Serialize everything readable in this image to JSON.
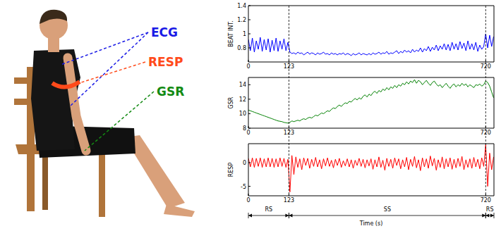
{
  "figure": {
    "labels": [
      {
        "text": "ECG",
        "color": "#1a1ae6"
      },
      {
        "text": "RESP",
        "color": "#ff4a1a"
      },
      {
        "text": "GSR",
        "color": "#138a13"
      }
    ],
    "vlines": [
      123,
      720
    ],
    "phases": [
      {
        "label": "RS",
        "start": 0,
        "end": 123
      },
      {
        "label": "SS",
        "start": 123,
        "end": 720
      },
      {
        "label": "RS",
        "start": 720,
        "end": 745
      }
    ]
  },
  "chart_data": [
    {
      "type": "line",
      "ylabel": "BEAT INT.",
      "grid": false,
      "xlim": [
        0,
        745
      ],
      "xticks": [
        0,
        123,
        720
      ],
      "ylim": [
        0.6,
        1.4
      ],
      "yticks": [
        0.8,
        1,
        1.2,
        1.4
      ],
      "x": [
        0,
        6,
        12,
        18,
        24,
        30,
        36,
        42,
        48,
        54,
        60,
        66,
        72,
        78,
        84,
        90,
        96,
        102,
        108,
        114,
        120,
        126,
        132,
        138,
        144,
        150,
        156,
        162,
        168,
        174,
        180,
        186,
        192,
        198,
        204,
        210,
        216,
        222,
        228,
        234,
        240,
        246,
        252,
        258,
        264,
        270,
        276,
        282,
        288,
        294,
        300,
        306,
        312,
        318,
        324,
        330,
        336,
        342,
        348,
        354,
        360,
        366,
        372,
        378,
        384,
        390,
        396,
        402,
        408,
        414,
        420,
        426,
        432,
        438,
        444,
        450,
        456,
        462,
        468,
        474,
        480,
        486,
        492,
        498,
        504,
        510,
        516,
        522,
        528,
        534,
        540,
        546,
        552,
        558,
        564,
        570,
        576,
        582,
        588,
        594,
        600,
        606,
        612,
        618,
        624,
        630,
        636,
        642,
        648,
        654,
        660,
        666,
        672,
        678,
        684,
        690,
        696,
        702,
        708,
        714,
        720,
        726,
        732,
        738,
        744
      ],
      "series": [
        {
          "color": "#0000ff",
          "values": [
            0.92,
            0.76,
            0.94,
            0.74,
            0.9,
            0.78,
            0.95,
            0.75,
            0.92,
            0.77,
            0.93,
            0.74,
            0.91,
            0.76,
            0.94,
            0.75,
            0.9,
            0.78,
            0.93,
            0.76,
            0.88,
            0.74,
            0.72,
            0.73,
            0.71,
            0.74,
            0.72,
            0.73,
            0.7,
            0.72,
            0.74,
            0.71,
            0.73,
            0.72,
            0.7,
            0.73,
            0.71,
            0.72,
            0.74,
            0.71,
            0.72,
            0.7,
            0.73,
            0.71,
            0.72,
            0.7,
            0.72,
            0.71,
            0.73,
            0.7,
            0.72,
            0.71,
            0.69,
            0.72,
            0.7,
            0.71,
            0.73,
            0.7,
            0.72,
            0.71,
            0.7,
            0.72,
            0.7,
            0.73,
            0.71,
            0.72,
            0.74,
            0.71,
            0.73,
            0.72,
            0.75,
            0.71,
            0.73,
            0.72,
            0.74,
            0.76,
            0.72,
            0.75,
            0.73,
            0.77,
            0.74,
            0.76,
            0.73,
            0.78,
            0.74,
            0.77,
            0.75,
            0.8,
            0.74,
            0.79,
            0.76,
            0.82,
            0.75,
            0.81,
            0.77,
            0.84,
            0.76,
            0.83,
            0.78,
            0.86,
            0.77,
            0.85,
            0.76,
            0.88,
            0.78,
            0.86,
            0.77,
            0.89,
            0.79,
            0.87,
            0.76,
            0.9,
            0.78,
            0.86,
            0.77,
            0.88,
            0.75,
            0.84,
            0.78,
            0.82,
            1.0,
            0.8,
            0.98,
            0.82,
            0.96
          ]
        }
      ]
    },
    {
      "type": "line",
      "ylabel": "GSR",
      "grid": false,
      "xlim": [
        0,
        745
      ],
      "xticks": [
        0,
        123,
        720
      ],
      "ylim": [
        8,
        15
      ],
      "yticks": [
        8,
        10,
        12,
        14
      ],
      "x": [
        0,
        6,
        12,
        18,
        24,
        30,
        36,
        42,
        48,
        54,
        60,
        66,
        72,
        78,
        84,
        90,
        96,
        102,
        108,
        114,
        120,
        126,
        132,
        138,
        144,
        150,
        156,
        162,
        168,
        174,
        180,
        186,
        192,
        198,
        204,
        210,
        216,
        222,
        228,
        234,
        240,
        246,
        252,
        258,
        264,
        270,
        276,
        282,
        288,
        294,
        300,
        306,
        312,
        318,
        324,
        330,
        336,
        342,
        348,
        354,
        360,
        366,
        372,
        378,
        384,
        390,
        396,
        402,
        408,
        414,
        420,
        426,
        432,
        438,
        444,
        450,
        456,
        462,
        468,
        474,
        480,
        486,
        492,
        498,
        504,
        510,
        516,
        522,
        528,
        534,
        540,
        546,
        552,
        558,
        564,
        570,
        576,
        582,
        588,
        594,
        600,
        606,
        612,
        618,
        624,
        630,
        636,
        642,
        648,
        654,
        660,
        666,
        672,
        678,
        684,
        690,
        696,
        702,
        708,
        714,
        720,
        726,
        732,
        738,
        744
      ],
      "series": [
        {
          "color": "#008000",
          "values": [
            10.5,
            10.4,
            10.3,
            10.2,
            10.1,
            10.0,
            9.9,
            9.8,
            9.7,
            9.6,
            9.5,
            9.4,
            9.3,
            9.2,
            9.1,
            9.0,
            8.95,
            8.9,
            8.8,
            8.75,
            8.7,
            8.8,
            9.0,
            8.9,
            9.0,
            9.1,
            9.0,
            9.2,
            9.3,
            9.2,
            9.4,
            9.5,
            9.4,
            9.6,
            9.8,
            9.7,
            9.9,
            10.1,
            10.0,
            10.2,
            10.4,
            10.3,
            10.6,
            10.8,
            10.7,
            11.0,
            11.2,
            11.0,
            11.3,
            11.5,
            11.4,
            11.7,
            11.6,
            11.9,
            12.1,
            11.9,
            12.2,
            12.0,
            12.4,
            12.6,
            12.3,
            12.7,
            12.5,
            12.9,
            13.1,
            12.8,
            13.2,
            13.0,
            13.4,
            13.2,
            13.6,
            13.3,
            13.7,
            13.5,
            13.9,
            13.6,
            14.0,
            13.8,
            14.2,
            14.0,
            14.4,
            14.1,
            14.5,
            14.3,
            14.7,
            14.2,
            14.6,
            14.4,
            14.0,
            14.3,
            14.6,
            14.2,
            13.9,
            14.3,
            14.5,
            14.1,
            13.8,
            14.0,
            13.6,
            13.9,
            14.2,
            13.8,
            13.5,
            13.9,
            14.1,
            13.7,
            14.0,
            13.8,
            14.2,
            13.9,
            14.1,
            13.7,
            14.0,
            13.8,
            13.6,
            14.0,
            13.9,
            14.1,
            13.8,
            14.0,
            14.5,
            14.3,
            13.8,
            13.0,
            12.2
          ]
        }
      ]
    },
    {
      "type": "line",
      "ylabel": "RESP",
      "xlabel": "Time (s)",
      "grid": false,
      "xlim": [
        0,
        745
      ],
      "xticks": [
        0,
        123,
        720
      ],
      "ylim": [
        -7,
        4
      ],
      "yticks": [
        -5,
        0
      ],
      "x": [
        0,
        6,
        12,
        18,
        24,
        30,
        36,
        42,
        48,
        54,
        60,
        66,
        72,
        78,
        84,
        90,
        96,
        102,
        108,
        114,
        120,
        126,
        132,
        138,
        144,
        150,
        156,
        162,
        168,
        174,
        180,
        186,
        192,
        198,
        204,
        210,
        216,
        222,
        228,
        234,
        240,
        246,
        252,
        258,
        264,
        270,
        276,
        282,
        288,
        294,
        300,
        306,
        312,
        318,
        324,
        330,
        336,
        342,
        348,
        354,
        360,
        366,
        372,
        378,
        384,
        390,
        396,
        402,
        408,
        414,
        420,
        426,
        432,
        438,
        444,
        450,
        456,
        462,
        468,
        474,
        480,
        486,
        492,
        498,
        504,
        510,
        516,
        522,
        528,
        534,
        540,
        546,
        552,
        558,
        564,
        570,
        576,
        582,
        588,
        594,
        600,
        606,
        612,
        618,
        624,
        630,
        636,
        642,
        648,
        654,
        660,
        666,
        672,
        678,
        684,
        690,
        696,
        702,
        708,
        714,
        720,
        726,
        732,
        738,
        744
      ],
      "series": [
        {
          "color": "#ff0000",
          "values": [
            0.9,
            -0.9,
            1.0,
            -1.0,
            0.9,
            -0.8,
            1.0,
            -1.0,
            0.8,
            -0.9,
            1.0,
            -0.9,
            0.9,
            -1.0,
            0.8,
            -0.9,
            1.0,
            -0.8,
            0.9,
            -1.0,
            0.7,
            -6.2,
            1.5,
            -2.5,
            1.2,
            -1.0,
            0.8,
            -1.5,
            1.0,
            -0.6,
            0.9,
            -1.2,
            0.7,
            -0.8,
            1.1,
            -0.9,
            0.6,
            -1.3,
            0.8,
            -0.7,
            1.0,
            -0.8,
            0.5,
            -1.1,
            0.7,
            -0.6,
            0.9,
            -1.0,
            0.4,
            -0.7,
            0.8,
            -0.9,
            0.6,
            -1.2,
            0.5,
            -0.6,
            0.9,
            -0.8,
            0.7,
            -1.1,
            0.6,
            -0.7,
            0.8,
            -1.4,
            0.6,
            -0.9,
            1.2,
            -1.0,
            0.5,
            -1.6,
            0.9,
            -0.8,
            0.7,
            -1.2,
            1.0,
            -0.6,
            0.8,
            -1.3,
            0.6,
            -0.9,
            1.1,
            -1.5,
            0.7,
            -0.8,
            1.3,
            -1.1,
            0.6,
            -1.7,
            1.0,
            -0.9,
            0.8,
            -1.2,
            1.4,
            -0.7,
            0.9,
            -1.6,
            0.6,
            -1.0,
            1.2,
            -1.3,
            0.8,
            -0.9,
            1.0,
            -1.4,
            0.7,
            -1.1,
            0.9,
            -0.8,
            1.3,
            -1.5,
            0.6,
            -1.0,
            0.8,
            -1.2,
            1.1,
            -0.9,
            0.7,
            -1.3,
            1.0,
            -0.8,
            3.8,
            -5.0,
            2.0,
            -1.5,
            1.2
          ]
        }
      ]
    }
  ]
}
